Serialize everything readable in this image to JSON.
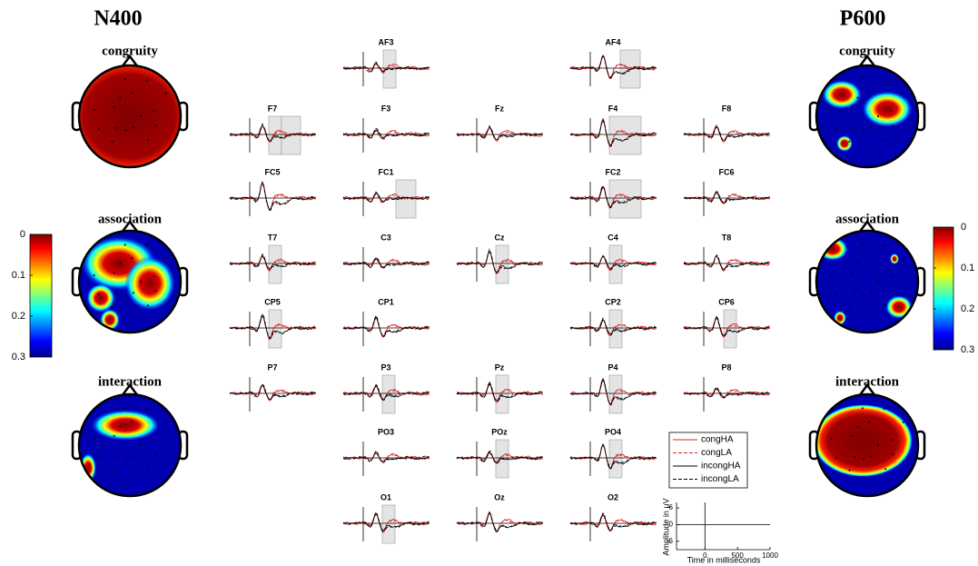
{
  "headings": {
    "left": "N400",
    "right": "P600"
  },
  "topomaps": {
    "left": [
      "congruity",
      "association",
      "interaction"
    ],
    "right": [
      "congruity",
      "association",
      "interaction"
    ]
  },
  "colorbar": {
    "ticks": [
      0,
      0.1,
      0.2,
      0.3
    ]
  },
  "electrodes": [
    "AF3",
    "AF4",
    "F7",
    "F3",
    "Fz",
    "F4",
    "F8",
    "FC5",
    "FC1",
    "FC2",
    "FC6",
    "T7",
    "C3",
    "Cz",
    "C4",
    "T8",
    "CP5",
    "CP1",
    "CP2",
    "CP6",
    "P7",
    "P3",
    "Pz",
    "P4",
    "P8",
    "PO3",
    "POz",
    "PO4",
    "O1",
    "Oz",
    "O2"
  ],
  "legend": [
    "congHA",
    "congLA",
    "incongHA",
    "incongLA"
  ],
  "scale": {
    "ylabel": "Amplitude in μV",
    "xlabel": "Time in milliseconds",
    "yticks": [
      6,
      0,
      -6
    ],
    "ylim": [
      -9,
      8
    ],
    "xticks": [
      0,
      500,
      1000
    ],
    "xlim": [
      -437,
      1000
    ]
  }
}
